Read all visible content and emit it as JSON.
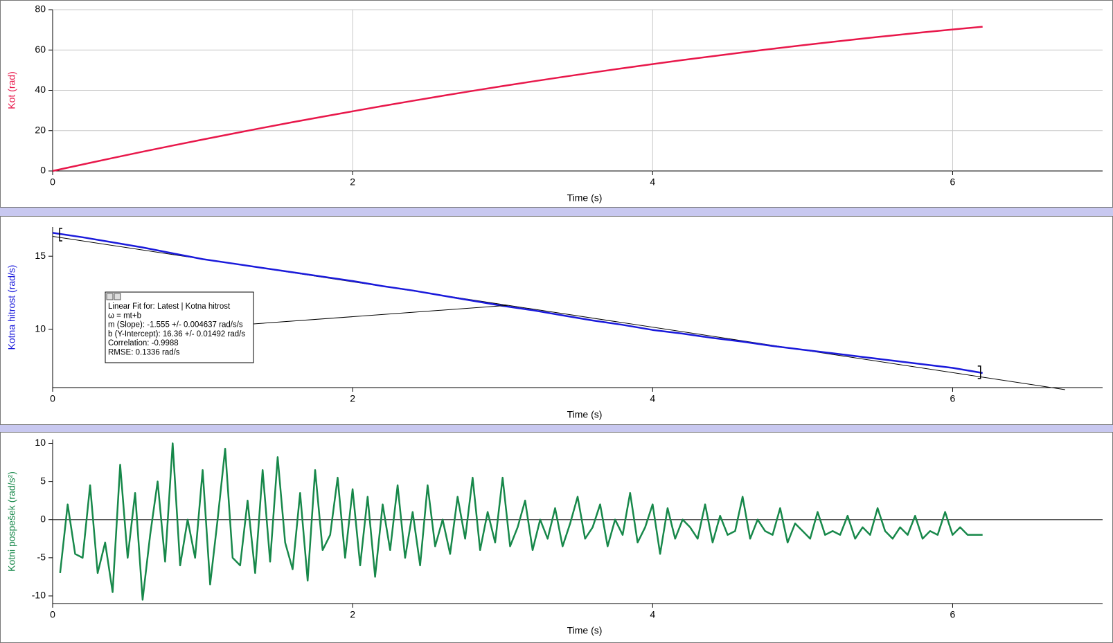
{
  "chart_data": [
    {
      "type": "line",
      "x_label": "Time (s)",
      "y_label": "Kot (rad)",
      "y_label_color": "#e8174a",
      "xlim": [
        0,
        7
      ],
      "xticks": [
        0,
        2,
        4,
        6
      ],
      "ylim": [
        0,
        80
      ],
      "yticks": [
        0,
        20,
        40,
        60,
        80
      ],
      "grid": true,
      "series": [
        {
          "color": "#e8174a",
          "x": [
            0,
            0.2,
            0.4,
            0.6,
            0.8,
            1.0,
            1.2,
            1.4,
            1.6,
            1.8,
            2.0,
            2.2,
            2.4,
            2.6,
            2.8,
            3.0,
            3.2,
            3.4,
            3.6,
            3.8,
            4.0,
            4.2,
            4.4,
            4.6,
            4.8,
            5.0,
            5.2,
            5.4,
            5.6,
            5.8,
            6.0,
            6.2
          ],
          "values": [
            0,
            3.24,
            6.42,
            9.54,
            12.59,
            15.58,
            18.51,
            21.38,
            24.19,
            26.93,
            29.61,
            32.23,
            34.79,
            37.28,
            39.71,
            42.08,
            44.39,
            46.64,
            48.82,
            50.94,
            53.0,
            55.0,
            56.93,
            58.8,
            60.61,
            62.36,
            64.05,
            65.67,
            67.23,
            68.73,
            70.17,
            71.54
          ]
        }
      ]
    },
    {
      "type": "line",
      "x_label": "Time (s)",
      "y_label": "Kotna hitrost (rad/s)",
      "y_label_color": "#1a1adb",
      "xlim": [
        0,
        7
      ],
      "xticks": [
        0,
        2,
        4,
        6
      ],
      "ylim": [
        6,
        17
      ],
      "yticks": [
        10,
        15
      ],
      "grid": false,
      "series": [
        {
          "color": "#1a1adb",
          "x": [
            0,
            0.2,
            0.4,
            0.6,
            0.8,
            1.0,
            1.2,
            1.4,
            1.6,
            1.8,
            2.0,
            2.2,
            2.4,
            2.6,
            2.8,
            3.0,
            3.2,
            3.4,
            3.6,
            3.8,
            4.0,
            4.2,
            4.4,
            4.6,
            4.8,
            5.0,
            5.2,
            5.4,
            5.6,
            5.8,
            6.0,
            6.2
          ],
          "values": [
            16.6,
            16.3,
            15.95,
            15.6,
            15.2,
            14.8,
            14.5,
            14.2,
            13.9,
            13.6,
            13.3,
            12.95,
            12.65,
            12.3,
            11.95,
            11.6,
            11.3,
            10.95,
            10.6,
            10.3,
            9.95,
            9.7,
            9.4,
            9.15,
            8.85,
            8.6,
            8.35,
            8.1,
            7.85,
            7.6,
            7.35,
            7.0
          ]
        }
      ],
      "fit_line": {
        "color": "#000000",
        "x": [
          0,
          6.75
        ],
        "values": [
          16.36,
          5.86
        ]
      },
      "annotation": {
        "lines": [
          "Linear Fit for: Latest | Kotna hitrost",
          "ω = mt+b",
          "m (Slope): -1.555 +/- 0.004637 rad/s/s",
          "b (Y-Intercept): 16.36 +/- 0.01492 rad/s",
          "Correlation: -0.9988",
          "RMSE: 0.1336 rad/s"
        ]
      }
    },
    {
      "type": "line",
      "x_label": "Time (s)",
      "y_label": "Kotni pospešek (rad/s²)",
      "y_label_color": "#17884a",
      "xlim": [
        0,
        7
      ],
      "xticks": [
        0,
        2,
        4,
        6
      ],
      "ylim": [
        -11,
        10.5
      ],
      "yticks": [
        -10,
        -5,
        0,
        5,
        10
      ],
      "grid": false,
      "zero_line": true,
      "series": [
        {
          "color": "#17884a",
          "x": [
            0.05,
            0.1,
            0.15,
            0.2,
            0.25,
            0.3,
            0.35,
            0.4,
            0.45,
            0.5,
            0.55,
            0.6,
            0.65,
            0.7,
            0.75,
            0.8,
            0.85,
            0.9,
            0.95,
            1.0,
            1.05,
            1.1,
            1.15,
            1.2,
            1.25,
            1.3,
            1.35,
            1.4,
            1.45,
            1.5,
            1.55,
            1.6,
            1.65,
            1.7,
            1.75,
            1.8,
            1.85,
            1.9,
            1.95,
            2.0,
            2.05,
            2.1,
            2.15,
            2.2,
            2.25,
            2.3,
            2.35,
            2.4,
            2.45,
            2.5,
            2.55,
            2.6,
            2.65,
            2.7,
            2.75,
            2.8,
            2.85,
            2.9,
            2.95,
            3.0,
            3.05,
            3.1,
            3.15,
            3.2,
            3.25,
            3.3,
            3.35,
            3.4,
            3.45,
            3.5,
            3.55,
            3.6,
            3.65,
            3.7,
            3.75,
            3.8,
            3.85,
            3.9,
            3.95,
            4.0,
            4.05,
            4.1,
            4.15,
            4.2,
            4.25,
            4.3,
            4.35,
            4.4,
            4.45,
            4.5,
            4.55,
            4.6,
            4.65,
            4.7,
            4.75,
            4.8,
            4.85,
            4.9,
            4.95,
            5.0,
            5.05,
            5.1,
            5.15,
            5.2,
            5.25,
            5.3,
            5.35,
            5.4,
            5.45,
            5.5,
            5.55,
            5.6,
            5.65,
            5.7,
            5.75,
            5.8,
            5.85,
            5.9,
            5.95,
            6.0,
            6.05,
            6.1,
            6.15,
            6.2
          ],
          "values": [
            -7,
            2,
            -4.5,
            -5,
            4.5,
            -7,
            -3,
            -9.5,
            7.2,
            -5,
            3.5,
            -10.5,
            -2,
            5,
            -5.5,
            10,
            -6,
            0,
            -5,
            6.5,
            -8.5,
            0,
            9.3,
            -5,
            -6,
            2.5,
            -7,
            6.5,
            -5.5,
            8.2,
            -3,
            -6.5,
            3.5,
            -8,
            6.5,
            -4,
            -2,
            5.5,
            -5,
            4,
            -6,
            3,
            -7.5,
            2,
            -4,
            4.5,
            -5,
            1,
            -6,
            4.5,
            -3.5,
            0,
            -4.5,
            3,
            -2.5,
            5.5,
            -4,
            1,
            -3,
            5.5,
            -3.5,
            -1,
            2.5,
            -4,
            0,
            -2.5,
            1.5,
            -3.5,
            -0.5,
            3,
            -2.5,
            -1,
            2,
            -3.5,
            0,
            -2,
            3.5,
            -3,
            -1,
            2,
            -4.5,
            1.5,
            -2.5,
            0,
            -1,
            -2.5,
            2,
            -3,
            0.5,
            -2,
            -1.5,
            3,
            -2.5,
            0,
            -1.5,
            -2,
            1.5,
            -3,
            -0.5,
            -1.5,
            -2.5,
            1,
            -2,
            -1.5,
            -2,
            0.5,
            -2.5,
            -1,
            -2,
            1.5,
            -1.5,
            -2.5,
            -1,
            -2,
            0.5,
            -2.5,
            -1.5,
            -2,
            1,
            -2,
            -1,
            -2,
            -2,
            -2
          ]
        }
      ]
    }
  ]
}
